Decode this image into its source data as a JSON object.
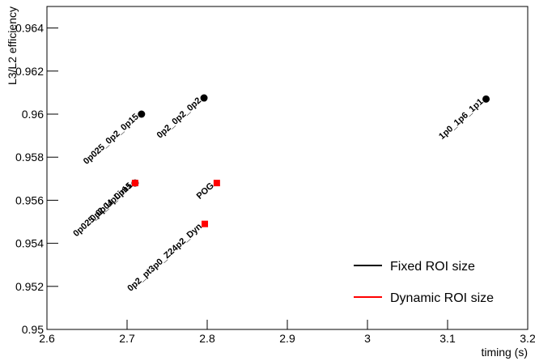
{
  "chart_data": {
    "type": "scatter",
    "x_label": "timing (s)",
    "y_label": "L3/L2 efficiency",
    "xlim": [
      2.6,
      3.2
    ],
    "xticks": [
      2.6,
      2.7,
      2.8,
      2.9,
      3,
      3.1,
      3.2
    ],
    "ylim": [
      0.95,
      0.965
    ],
    "yticks": [
      0.95,
      0.952,
      0.954,
      0.956,
      0.958,
      0.96,
      0.962,
      0.964
    ],
    "legend_position": "lower right",
    "series": [
      {
        "name": "Fixed ROI size",
        "color": "#000000",
        "marker": "circle",
        "x": [
          2.718,
          2.796,
          3.148,
          2.71
        ],
        "values": [
          0.96,
          0.96075,
          0.9607,
          0.9568
        ],
        "point_labels": [
          "0p025_0p2_0p15",
          "0p2_0p2_0p2",
          "1p0_1p6_1p1",
          "0p025_0p04_0p15"
        ]
      },
      {
        "name": "Dynamic ROI size",
        "color": "#ff0000",
        "marker": "square",
        "x": [
          2.71,
          2.812,
          2.797
        ],
        "values": [
          0.9568,
          0.9568,
          0.9549
        ],
        "point_labels": [
          "0p2_UpLim1",
          "POG",
          "0p2_pt3p0_Z24p2_Dyn"
        ]
      }
    ]
  }
}
